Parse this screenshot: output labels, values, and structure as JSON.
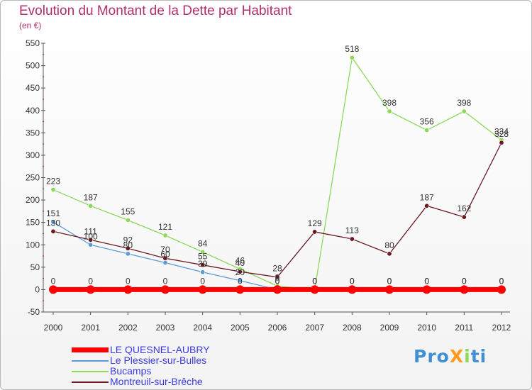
{
  "header": {
    "title": "Evolution du Montant de la Dette par Habitant",
    "unit": "(en €)"
  },
  "logo": {
    "text": "ProXiti"
  },
  "colors": {
    "title": "#b0306a",
    "legend_text": "#3a3ae0",
    "axis": "#555555",
    "grid_tick": "#c8102e"
  },
  "chart_data": {
    "type": "line",
    "title": "Evolution du Montant de la Dette par Habitant",
    "subtitle": "(en €)",
    "xlabel": "",
    "ylabel": "",
    "x": [
      "2000",
      "2001",
      "2002",
      "2003",
      "2004",
      "2005",
      "2006",
      "2007",
      "2008",
      "2009",
      "2010",
      "2011",
      "2012"
    ],
    "ylim": [
      -50,
      550
    ],
    "yticks": [
      -50,
      0,
      50,
      100,
      150,
      200,
      250,
      300,
      350,
      400,
      450,
      500,
      550
    ],
    "grid": false,
    "legend_position": "bottom-left",
    "series": [
      {
        "name": "LE QUESNEL-AUBRY",
        "color": "#ff0000",
        "values": [
          0,
          0,
          0,
          0,
          0,
          0,
          0,
          0,
          0,
          0,
          0,
          0,
          0
        ]
      },
      {
        "name": "Le Plessier-sur-Bulles",
        "color": "#5b9bd5",
        "values": [
          151,
          100,
          80,
          60,
          39,
          20,
          0,
          0,
          0,
          0,
          0,
          0,
          0
        ]
      },
      {
        "name": "Bucamps",
        "color": "#8ed85a",
        "values": [
          223,
          187,
          155,
          121,
          84,
          46,
          8,
          0,
          518,
          398,
          356,
          398,
          334
        ]
      },
      {
        "name": "Montreuil-sur-Brêche",
        "color": "#6b1a22",
        "values": [
          130,
          111,
          92,
          70,
          55,
          40,
          28,
          129,
          113,
          80,
          187,
          162,
          328
        ]
      }
    ]
  }
}
